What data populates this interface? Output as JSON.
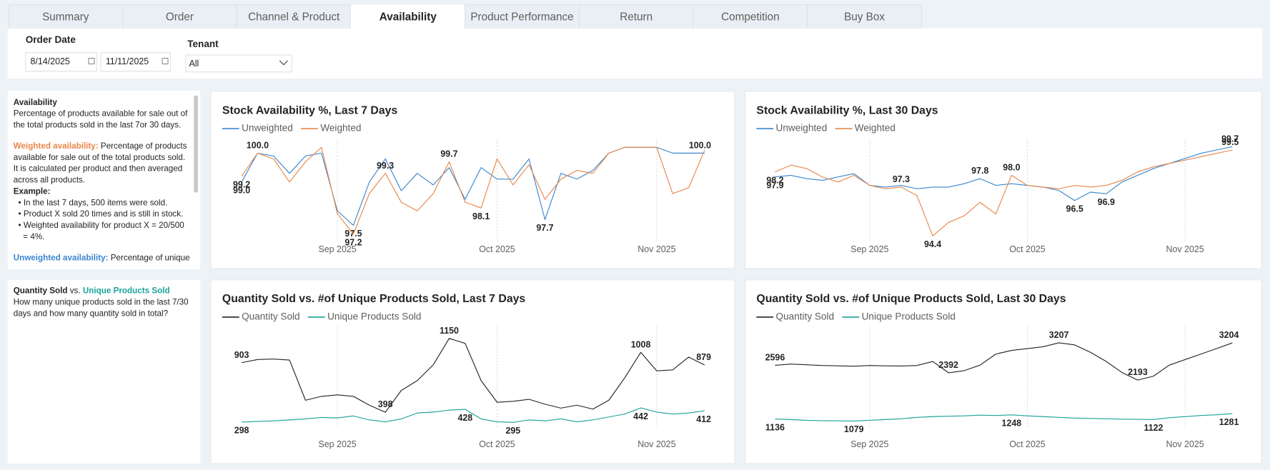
{
  "tabs": [
    "Summary",
    "Order",
    "Channel & Product",
    "Availability",
    "Product Performance",
    "Return",
    "Competition",
    "Buy Box"
  ],
  "active_tab": 3,
  "filters": {
    "order_date": {
      "label": "Order Date",
      "start": "8/14/2025",
      "end": "11/11/2025"
    },
    "tenant": {
      "label": "Tenant",
      "value": "All"
    }
  },
  "info_panels": [
    {
      "paragraphs": [
        [
          {
            "segments": [
              {
                "text": "Availability",
                "style": "bold"
              }
            ]
          },
          {
            "segments": [
              {
                "text": "Percentage of products available for sale out of"
              }
            ]
          },
          {
            "segments": [
              {
                "text": "the total products sold in the last 7or 30 days."
              }
            ]
          }
        ],
        [
          {
            "segments": [
              {
                "text": "Weighted availability:",
                "style": "orange"
              },
              {
                "text": " Percentage of products"
              }
            ]
          },
          {
            "segments": [
              {
                "text": "available for sale out of the total products sold."
              }
            ]
          },
          {
            "segments": [
              {
                "text": "It is calculated per product and then averaged"
              }
            ]
          },
          {
            "segments": [
              {
                "text": "across all products."
              }
            ]
          },
          {
            "segments": [
              {
                "text": "Example:",
                "style": "bold"
              }
            ]
          },
          {
            "segments": [
              {
                "text": "• In the last 7 days, 500 items were sold."
              }
            ],
            "indent": 1
          },
          {
            "segments": [
              {
                "text": "• Product X sold 20 times and is still in stock."
              }
            ],
            "indent": 1
          },
          {
            "segments": [
              {
                "text": "• Weighted availability for product X = 20/500"
              }
            ],
            "indent": 1
          },
          {
            "segments": [
              {
                "text": "= 4%."
              }
            ],
            "indent": 2
          }
        ],
        [
          {
            "segments": [
              {
                "text": "Unweighted availability:",
                "style": "blue"
              },
              {
                "text": " Percentage of unique"
              }
            ]
          }
        ]
      ]
    },
    {
      "paragraphs": [
        [
          {
            "segments": [
              {
                "text": "Quantity Sold",
                "style": "bold"
              },
              {
                "text": " vs. "
              },
              {
                "text": "Unique Products Sold",
                "style": "teal"
              }
            ]
          },
          {
            "segments": [
              {
                "text": "How many unique products sold in the last 7/30"
              }
            ]
          },
          {
            "segments": [
              {
                "text": "days and how many quantity sold in total?"
              }
            ]
          }
        ]
      ]
    }
  ],
  "chart_data": [
    {
      "type": "line",
      "title": "Stock Availability %, Last 7 Days",
      "categories": [
        null,
        null,
        null,
        null,
        null,
        null,
        "Sep 2025",
        null,
        null,
        null,
        null,
        null,
        null,
        null,
        null,
        null,
        "Oct 2025",
        null,
        null,
        null,
        null,
        null,
        null,
        null,
        null,
        null,
        "Nov 2025",
        null,
        null,
        null
      ],
      "ylim": [
        96.9,
        100.4
      ],
      "series": [
        {
          "name": "Unweighted",
          "color": "#3a86d0",
          "label_position": "auto",
          "values": [
            99.0,
            100.0,
            99.9,
            99.3,
            99.9,
            100.0,
            98.0,
            97.5,
            99.0,
            99.8,
            98.7,
            99.3,
            98.9,
            99.5,
            98.4,
            99.5,
            99.1,
            99.1,
            99.8,
            97.7,
            99.3,
            99.1,
            99.4,
            100.0,
            100.2,
            100.2,
            100.2,
            100.0,
            100.0,
            100.0
          ],
          "value_labels": [
            "99.0",
            "100.0",
            null,
            null,
            null,
            null,
            null,
            "97.5",
            null,
            null,
            null,
            null,
            null,
            null,
            null,
            null,
            null,
            null,
            null,
            "97.7",
            null,
            null,
            null,
            null,
            null,
            null,
            null,
            null,
            null,
            "100.0"
          ]
        },
        {
          "name": "Weighted",
          "color": "#e8864a",
          "label_position": "auto",
          "values": [
            99.2,
            100.0,
            99.8,
            99.0,
            99.7,
            100.2,
            97.9,
            97.2,
            98.6,
            99.3,
            98.3,
            98.0,
            98.6,
            99.7,
            98.3,
            98.1,
            99.8,
            98.9,
            99.6,
            98.4,
            99.1,
            99.4,
            99.3,
            100.0,
            100.2,
            100.2,
            100.2,
            98.6,
            98.8,
            100.1
          ],
          "value_labels": [
            "99.2",
            null,
            null,
            null,
            null,
            null,
            null,
            "97.2",
            null,
            "99.3",
            null,
            null,
            null,
            "99.7",
            null,
            "98.1",
            null,
            null,
            null,
            null,
            null,
            null,
            null,
            null,
            null,
            null,
            null,
            null,
            null,
            null
          ]
        }
      ]
    },
    {
      "type": "line",
      "title": "Stock Availability %, Last 30 Days",
      "categories": [
        null,
        null,
        null,
        null,
        null,
        null,
        "Sep 2025",
        null,
        null,
        null,
        null,
        null,
        null,
        null,
        null,
        null,
        "Oct 2025",
        null,
        null,
        null,
        null,
        null,
        null,
        null,
        null,
        null,
        "Nov 2025",
        null,
        null,
        null
      ],
      "ylim": [
        94.0,
        100.0
      ],
      "series": [
        {
          "name": "Unweighted",
          "color": "#3a86d0",
          "label_position": "auto",
          "values": [
            97.9,
            98.0,
            97.8,
            97.7,
            97.9,
            98.1,
            97.4,
            97.3,
            97.4,
            97.2,
            97.3,
            97.3,
            97.5,
            97.8,
            97.4,
            97.5,
            97.4,
            97.3,
            97.1,
            96.5,
            97.0,
            96.9,
            97.6,
            98.0,
            98.4,
            98.7,
            99.0,
            99.3,
            99.5,
            99.7
          ],
          "value_labels": [
            "97.9",
            null,
            null,
            null,
            null,
            null,
            null,
            null,
            null,
            null,
            null,
            null,
            null,
            "97.8",
            null,
            null,
            null,
            null,
            null,
            "96.5",
            null,
            "96.9",
            null,
            null,
            null,
            null,
            null,
            null,
            null,
            "99.7"
          ]
        },
        {
          "name": "Weighted",
          "color": "#e8864a",
          "label_position": "auto",
          "values": [
            98.2,
            98.6,
            98.4,
            97.9,
            97.6,
            98.0,
            97.4,
            97.2,
            97.3,
            96.8,
            94.4,
            95.2,
            95.6,
            96.4,
            95.7,
            98.0,
            97.4,
            97.3,
            97.2,
            97.4,
            97.3,
            97.4,
            97.7,
            98.2,
            98.5,
            98.7,
            98.9,
            99.1,
            99.3,
            99.5
          ],
          "value_labels": [
            "98.2",
            null,
            null,
            null,
            null,
            null,
            null,
            null,
            "97.3",
            null,
            "94.4",
            null,
            null,
            null,
            null,
            "98.0",
            null,
            null,
            null,
            null,
            null,
            null,
            null,
            null,
            null,
            null,
            null,
            null,
            null,
            "99.5"
          ]
        }
      ]
    },
    {
      "type": "line",
      "title": "Quantity Sold vs. #of Unique Products Sold, Last 7 Days",
      "categories": [
        null,
        null,
        null,
        null,
        null,
        null,
        "Sep 2025",
        null,
        null,
        null,
        null,
        null,
        null,
        null,
        null,
        null,
        "Oct 2025",
        null,
        null,
        null,
        null,
        null,
        null,
        null,
        null,
        null,
        "Nov 2025",
        null,
        null,
        null
      ],
      "ylim": [
        230,
        1260
      ],
      "series": [
        {
          "name": "Quantity Sold",
          "color": "#252423",
          "label_position": "above",
          "values": [
            903,
            935,
            940,
            930,
            520,
            560,
            575,
            560,
            470,
            398,
            620,
            720,
            880,
            1150,
            1100,
            720,
            500,
            510,
            530,
            480,
            440,
            470,
            430,
            520,
            750,
            1008,
            820,
            830,
            960,
            879
          ],
          "value_labels": [
            "903",
            null,
            null,
            null,
            null,
            null,
            null,
            null,
            null,
            "398",
            null,
            null,
            null,
            "1150",
            null,
            null,
            null,
            null,
            null,
            null,
            null,
            null,
            null,
            null,
            null,
            "1008",
            null,
            null,
            null,
            "879"
          ]
        },
        {
          "name": "Unique Products Sold",
          "color": "#1aa39a",
          "label_position": "below",
          "values": [
            298,
            305,
            310,
            320,
            330,
            345,
            340,
            360,
            320,
            300,
            330,
            390,
            400,
            420,
            428,
            330,
            300,
            295,
            320,
            310,
            330,
            300,
            320,
            350,
            380,
            442,
            400,
            380,
            390,
            412
          ],
          "value_labels": [
            "298",
            null,
            null,
            null,
            null,
            null,
            null,
            null,
            null,
            null,
            null,
            null,
            null,
            null,
            "428",
            null,
            null,
            "295",
            null,
            null,
            null,
            null,
            null,
            null,
            null,
            "442",
            null,
            null,
            null,
            "412"
          ]
        }
      ]
    },
    {
      "type": "line",
      "title": "Quantity Sold vs. #of Unique Products Sold, Last 30 Days",
      "categories": [
        null,
        null,
        null,
        null,
        null,
        null,
        "Sep 2025",
        null,
        null,
        null,
        null,
        null,
        null,
        null,
        null,
        null,
        "Oct 2025",
        null,
        null,
        null,
        null,
        null,
        null,
        null,
        null,
        null,
        "Nov 2025",
        null,
        null,
        null
      ],
      "ylim": [
        870,
        3620
      ],
      "series": [
        {
          "name": "Quantity Sold",
          "color": "#252423",
          "label_position": "above",
          "values": [
            2596,
            2630,
            2610,
            2590,
            2580,
            2570,
            2590,
            2580,
            2575,
            2590,
            2700,
            2392,
            2450,
            2600,
            2900,
            3000,
            3050,
            3100,
            3207,
            3150,
            2950,
            2700,
            2400,
            2193,
            2300,
            2600,
            2750,
            2900,
            3050,
            3204
          ],
          "value_labels": [
            "2596",
            null,
            null,
            null,
            null,
            null,
            null,
            null,
            null,
            null,
            null,
            "2392",
            null,
            null,
            null,
            null,
            null,
            null,
            "3207",
            null,
            null,
            null,
            null,
            "2193",
            null,
            null,
            null,
            null,
            null,
            "3204"
          ]
        },
        {
          "name": "Unique Products Sold",
          "color": "#1aa39a",
          "label_position": "below",
          "values": [
            1136,
            1120,
            1100,
            1090,
            1085,
            1079,
            1100,
            1120,
            1140,
            1180,
            1200,
            1210,
            1220,
            1240,
            1230,
            1248,
            1220,
            1200,
            1180,
            1160,
            1150,
            1140,
            1130,
            1125,
            1122,
            1170,
            1200,
            1230,
            1250,
            1281
          ],
          "value_labels": [
            "1136",
            null,
            null,
            null,
            null,
            "1079",
            null,
            null,
            null,
            null,
            null,
            null,
            null,
            null,
            null,
            "1248",
            null,
            null,
            null,
            null,
            null,
            null,
            null,
            null,
            "1122",
            null,
            null,
            null,
            null,
            "1281"
          ]
        }
      ]
    }
  ]
}
